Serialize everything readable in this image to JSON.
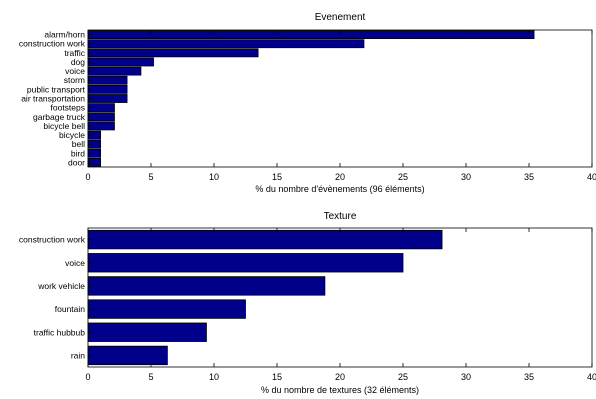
{
  "chart_data": [
    {
      "type": "bar",
      "orientation": "horizontal",
      "title": "Evenement",
      "xlabel": "% du nombre d'évènements (96 éléments)",
      "ylabel": "",
      "xlim": [
        0,
        40
      ],
      "xticks": [
        0,
        5,
        10,
        15,
        20,
        25,
        30,
        35,
        40
      ],
      "grid": false,
      "bar_color": "#00008b",
      "categories": [
        "alarm/horn",
        "construction work",
        "traffic",
        "dog",
        "voice",
        "storm",
        "public transport",
        "air transportation",
        "footsteps",
        "garbage truck",
        "bicycle bell",
        "bicycle",
        "bell",
        "bird",
        "door"
      ],
      "values": [
        35.4,
        21.9,
        13.5,
        5.2,
        4.2,
        3.1,
        3.1,
        3.1,
        2.1,
        2.1,
        2.1,
        1.0,
        1.0,
        1.0,
        1.0
      ]
    },
    {
      "type": "bar",
      "orientation": "horizontal",
      "title": "Texture",
      "xlabel": "% du nombre de textures (32 éléments)",
      "ylabel": "",
      "xlim": [
        0,
        40
      ],
      "xticks": [
        0,
        5,
        10,
        15,
        20,
        25,
        30,
        35,
        40
      ],
      "grid": false,
      "bar_color": "#00008b",
      "categories": [
        "construction work",
        "voice",
        "work vehicle",
        "fountain",
        "traffic hubbub",
        "rain"
      ],
      "values": [
        28.1,
        25.0,
        18.8,
        12.5,
        9.4,
        6.3
      ]
    }
  ]
}
